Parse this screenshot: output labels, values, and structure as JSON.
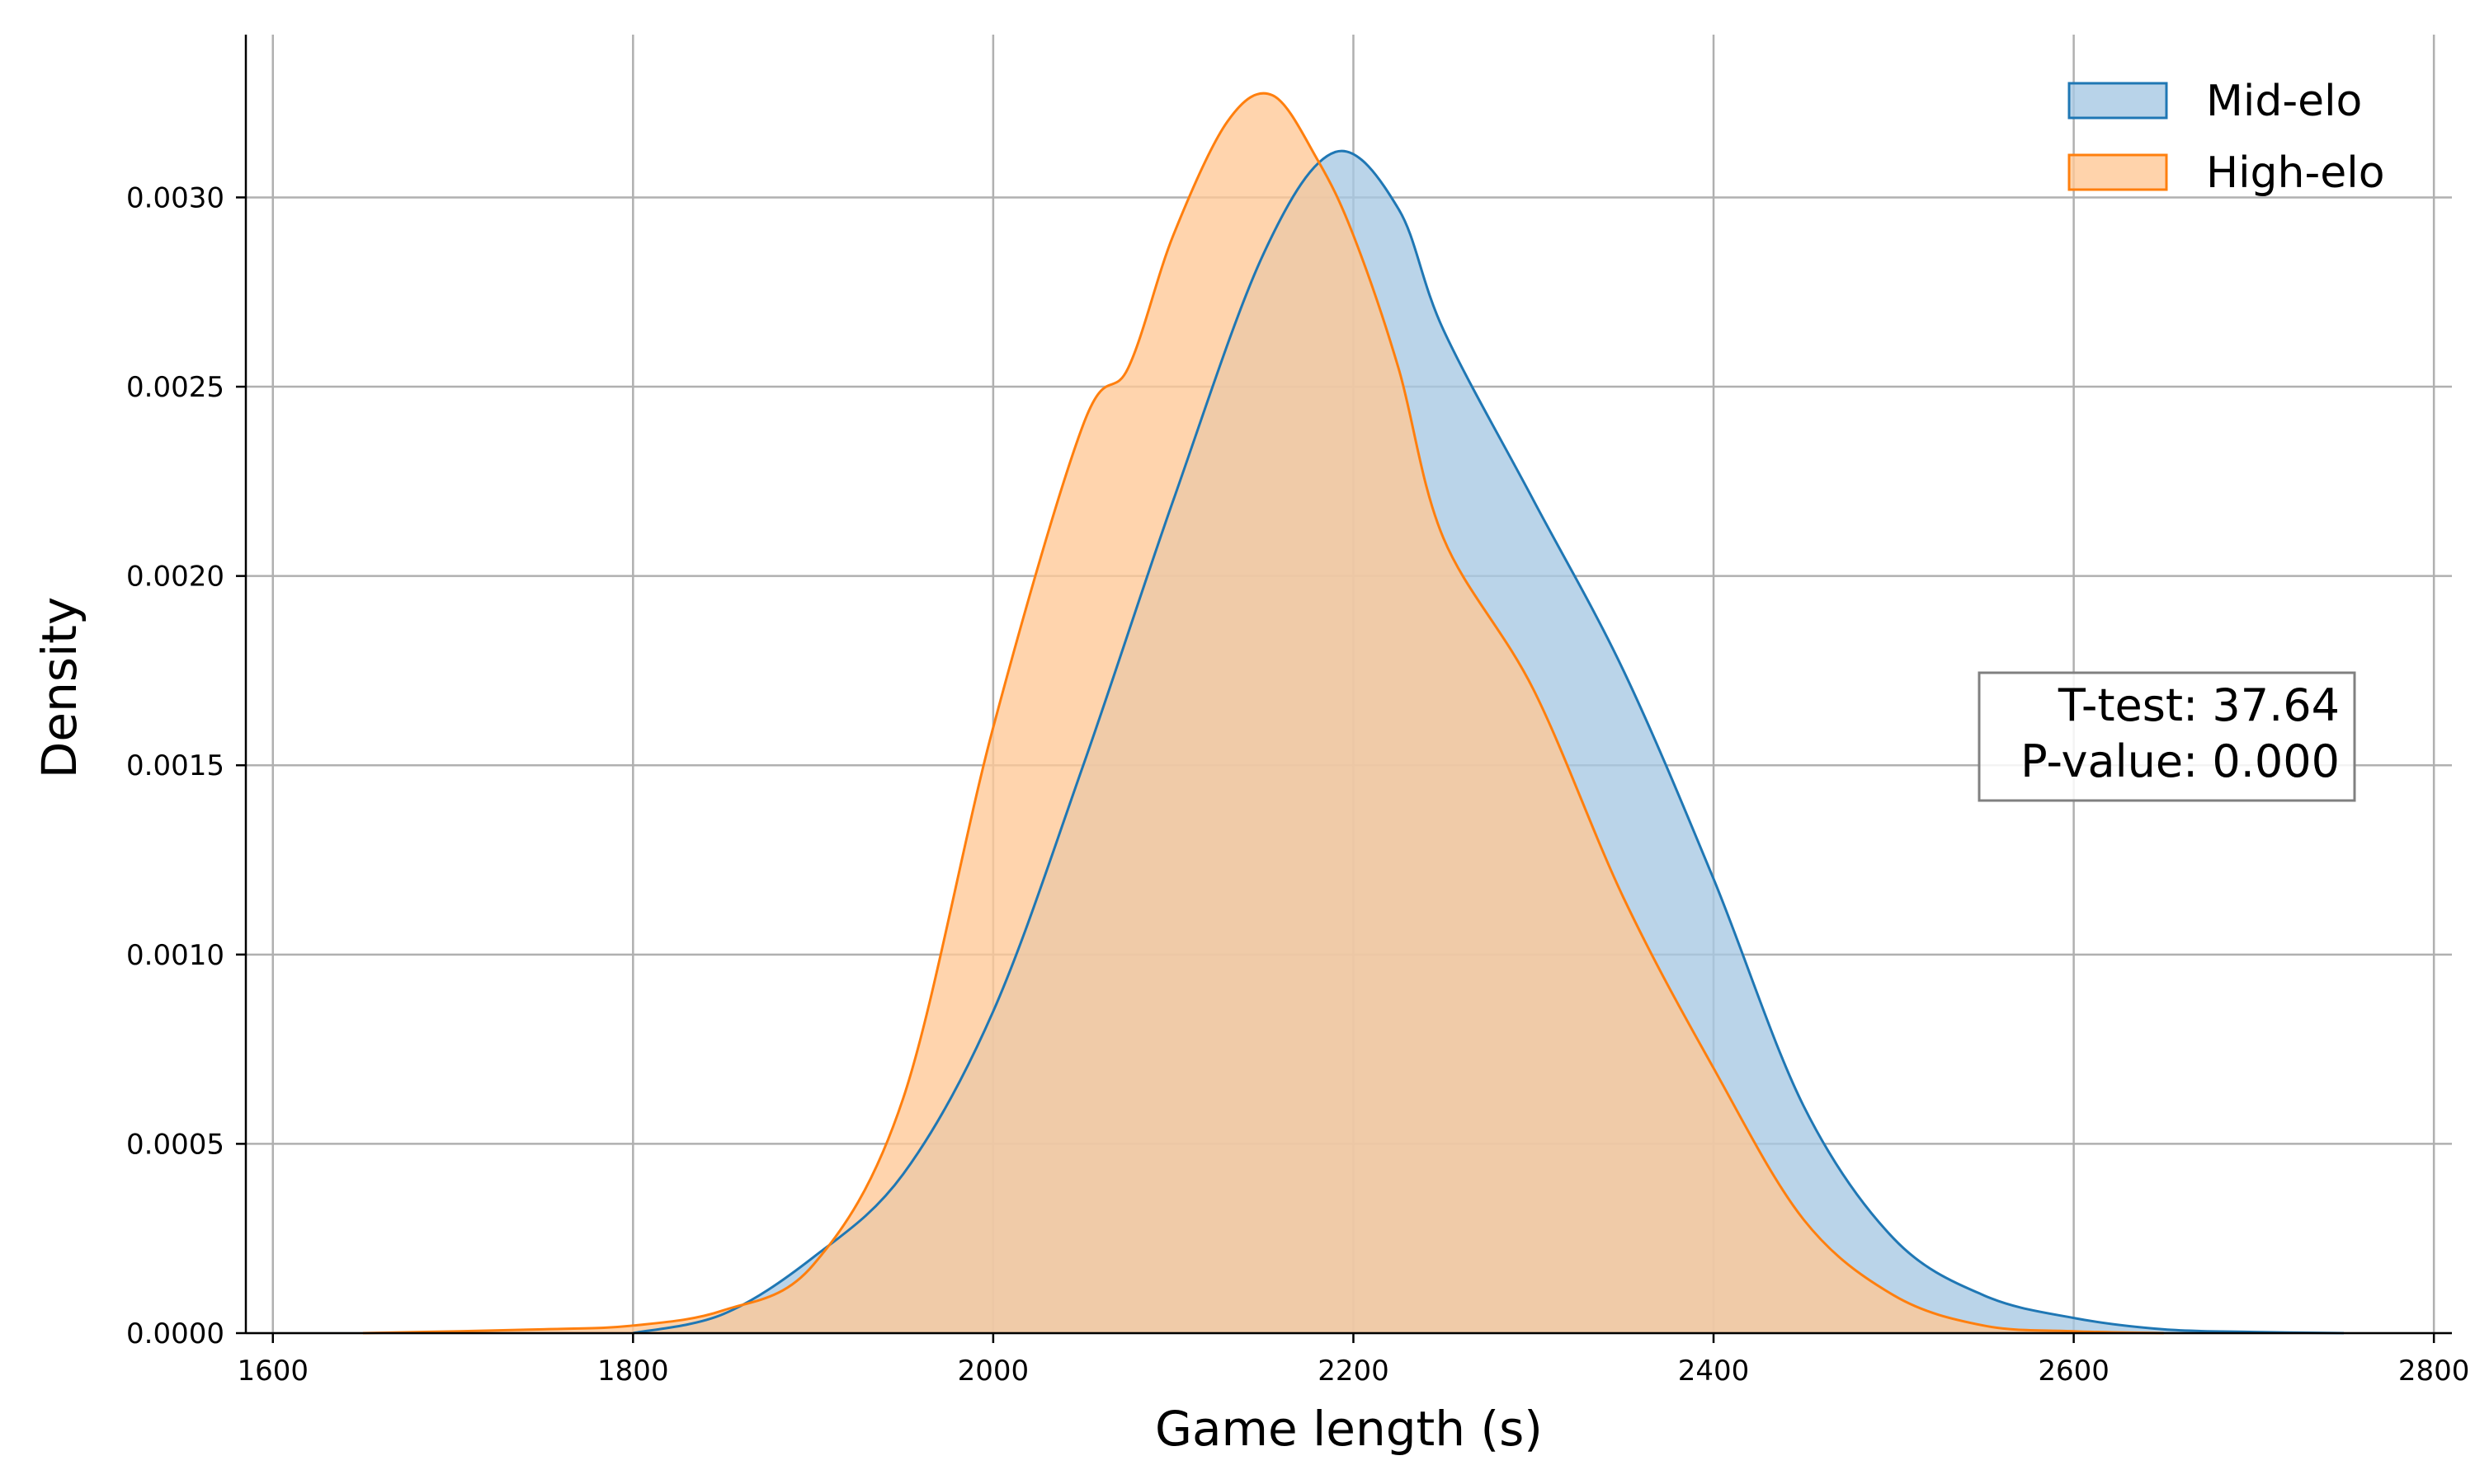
{
  "chart_data": {
    "type": "area",
    "xlabel": "Game length (s)",
    "ylabel": "Density",
    "xlim": [
      1585,
      2810
    ],
    "ylim": [
      0,
      0.00343
    ],
    "x_ticks": [
      1600,
      1800,
      2000,
      2200,
      2400,
      2600,
      2800
    ],
    "y_ticks": [
      0.0,
      0.0005,
      0.001,
      0.0015,
      0.002,
      0.0025,
      0.003
    ],
    "x_tick_labels": [
      "1600",
      "1800",
      "2000",
      "2200",
      "2400",
      "2600",
      "2800"
    ],
    "y_tick_labels": [
      "0.0000",
      "0.0005",
      "0.0010",
      "0.0015",
      "0.0020",
      "0.0025",
      "0.0030"
    ],
    "grid": true,
    "legend_position": "top-right",
    "series": [
      {
        "name": "Mid-elo",
        "line_color": "#1f77b4",
        "fill_color": "#a6c8e3",
        "x": [
          1800,
          1850,
          1900,
          1950,
          2000,
          2050,
          2100,
          2150,
          2190,
          2225,
          2250,
          2300,
          2350,
          2400,
          2450,
          2500,
          2550,
          2600,
          2650,
          2700,
          2750
        ],
        "y": [
          0.0,
          5e-05,
          0.0002,
          0.00042,
          0.00085,
          0.0015,
          0.0022,
          0.00285,
          0.00312,
          0.00297,
          0.00265,
          0.0022,
          0.00175,
          0.0012,
          0.0006,
          0.00025,
          0.0001,
          4e-05,
          1e-05,
          3e-06,
          0.0
        ]
      },
      {
        "name": "High-elo",
        "line_color": "#ff7f0e",
        "fill_color": "#ffc896",
        "x": [
          1650,
          1750,
          1800,
          1850,
          1900,
          1950,
          2000,
          2050,
          2075,
          2100,
          2130,
          2155,
          2180,
          2200,
          2225,
          2250,
          2300,
          2350,
          2400,
          2450,
          2500,
          2550,
          2600,
          2650
        ],
        "y": [
          0.0,
          1e-05,
          2e-05,
          6e-05,
          0.00018,
          0.00062,
          0.0016,
          0.0024,
          0.00255,
          0.0029,
          0.0032,
          0.00327,
          0.0031,
          0.0029,
          0.00255,
          0.0021,
          0.0017,
          0.00115,
          0.0007,
          0.0003,
          0.0001,
          2e-05,
          5e-06,
          0.0
        ]
      }
    ],
    "annotation": {
      "lines": [
        "T-test: 37.64",
        "P-value: 0.000"
      ]
    }
  }
}
